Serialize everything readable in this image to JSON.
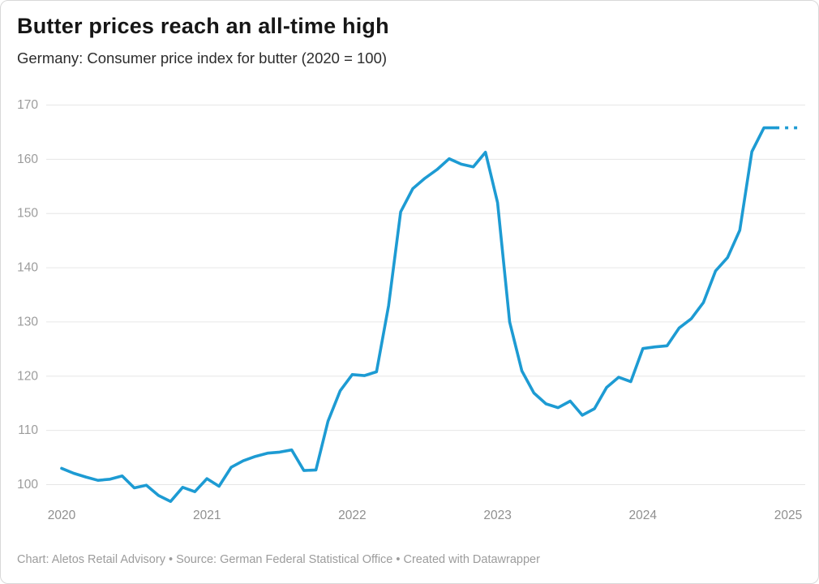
{
  "header": {
    "title": "Butter prices reach an all-time high",
    "subtitle": "Germany: Consumer price index for butter (2020 = 100)"
  },
  "footer": {
    "text": "Chart: Aletos Retail Advisory • Source: German Federal Statistical Office • Created with Datawrapper"
  },
  "chart_data": {
    "type": "line",
    "title": "Butter prices reach an all-time high",
    "subtitle": "Germany: Consumer price index for butter (2020 = 100)",
    "x_tick_labels": [
      "2020",
      "2021",
      "2022",
      "2023",
      "2024",
      "2025"
    ],
    "x_tick_month_indices": [
      0,
      12,
      24,
      36,
      48,
      60
    ],
    "y_ticks": [
      100,
      110,
      120,
      130,
      140,
      150,
      160,
      170
    ],
    "ylim": [
      96,
      171
    ],
    "grid": true,
    "legend_position": "none",
    "line_color": "#1d9bd3",
    "series": [
      {
        "name": "Consumer price index for butter (2020 = 100)",
        "start_month": "2020-01",
        "values": [
          103.0,
          102.1,
          101.4,
          100.8,
          101.0,
          101.6,
          99.4,
          99.9,
          98.0,
          96.9,
          99.5,
          98.7,
          101.1,
          99.7,
          103.2,
          104.4,
          105.2,
          105.8,
          106.0,
          106.4,
          102.6,
          102.7,
          111.7,
          117.3,
          120.3,
          120.1,
          120.8,
          133.0,
          150.3,
          154.6,
          156.5,
          158.1,
          160.1,
          159.1,
          158.6,
          161.3,
          152.0,
          130.0,
          121.0,
          116.9,
          114.9,
          114.2,
          115.4,
          112.8,
          114.0,
          117.9,
          119.8,
          119.0,
          125.1,
          125.4,
          125.6,
          128.9,
          130.6,
          133.6,
          139.4,
          141.9,
          146.9,
          161.4,
          165.8,
          165.8
        ]
      }
    ],
    "dashed_extension": {
      "note": "dotted continuation at end of line (provisional values into 2025)",
      "month_indices": [
        59,
        60,
        61
      ],
      "values": [
        165.8,
        165.8,
        165.8
      ]
    }
  }
}
